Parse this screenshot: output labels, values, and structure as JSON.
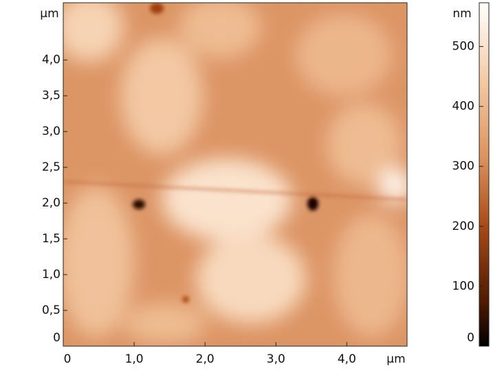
{
  "chart_data": {
    "type": "image",
    "x_unit": "µm",
    "y_unit": "µm",
    "colorbar_unit": "nm",
    "xlim": [
      0,
      4.85
    ],
    "ylim": [
      0,
      4.8
    ],
    "clim": [
      0,
      573
    ],
    "xticks": [
      0,
      {
        "value": 1,
        "label": "1,0"
      },
      {
        "value": 2,
        "label": "2,0"
      },
      {
        "value": 3,
        "label": "3,0"
      },
      {
        "value": 4,
        "label": "4,0"
      }
    ],
    "yticks": [
      0,
      {
        "value": 0.5,
        "label": "0,5"
      },
      {
        "value": 1,
        "label": "1,0"
      },
      {
        "value": 1.5,
        "label": "1,5"
      },
      {
        "value": 2,
        "label": "2,0"
      },
      {
        "value": 2.5,
        "label": "2,5"
      },
      {
        "value": 3,
        "label": "3,0"
      },
      {
        "value": 3.5,
        "label": "3,5"
      },
      {
        "value": 4,
        "label": "4,0"
      }
    ],
    "cticks": [
      0,
      100,
      200,
      300,
      400,
      500
    ]
  }
}
